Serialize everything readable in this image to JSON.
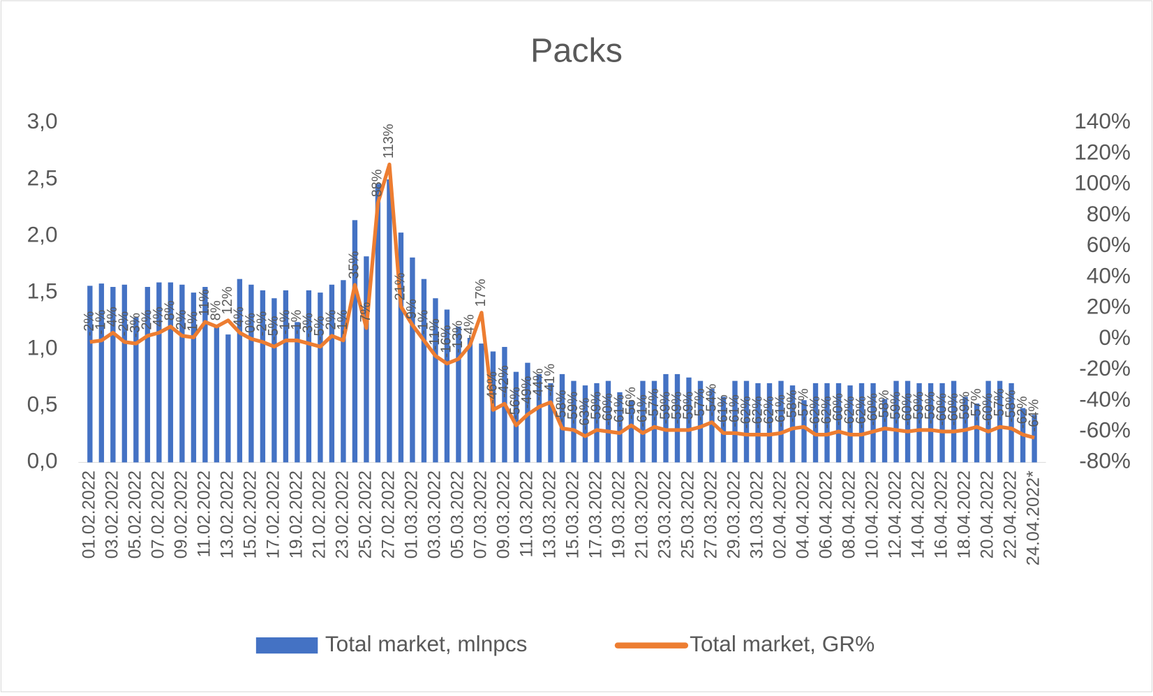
{
  "chart_data": {
    "type": "bar-line",
    "title": "Packs",
    "categories": [
      "01.02.2022",
      null,
      "03.02.2022",
      null,
      "05.02.2022",
      null,
      "07.02.2022",
      null,
      "09.02.2022",
      null,
      "11.02.2022",
      null,
      "13.02.2022",
      null,
      "15.02.2022",
      null,
      "17.02.2022",
      null,
      "19.02.2022",
      null,
      "21.02.2022",
      null,
      "23.02.2022",
      null,
      "25.02.2022",
      null,
      "27.02.2022",
      null,
      "01.03.2022",
      null,
      "03.03.2022",
      null,
      "05.03.2022",
      null,
      "07.03.2022",
      null,
      "09.03.2022",
      null,
      "11.03.2022",
      null,
      "13.03.2022",
      null,
      "15.03.2022",
      null,
      "17.03.2022",
      null,
      "19.03.2022",
      null,
      "21.03.2022",
      null,
      "23.03.2022",
      null,
      "25.03.2022",
      null,
      "27.03.2022",
      null,
      "29.03.2022",
      null,
      "31.03.2022",
      null,
      "02.04.2022",
      null,
      "04.04.2022",
      null,
      "06.04.2022",
      null,
      "08.04.2022",
      null,
      "10.04.2022",
      null,
      "12.04.2022",
      null,
      "14.04.2022",
      null,
      "16.04.2022",
      null,
      "18.04.2022",
      null,
      "20.04.2022",
      null,
      "22.04.2022",
      null,
      "24.04.2022*"
    ],
    "series": [
      {
        "name": "Total market, mlnpcs",
        "color": "#4472c4",
        "kind": "bar",
        "values": [
          1.56,
          1.58,
          1.55,
          1.57,
          1.28,
          1.55,
          1.59,
          1.59,
          1.57,
          1.5,
          1.55,
          1.2,
          1.13,
          1.62,
          1.57,
          1.52,
          1.45,
          1.52,
          1.24,
          1.52,
          1.5,
          1.57,
          1.61,
          2.14,
          1.82,
          2.46,
          2.5,
          2.03,
          1.81,
          1.62,
          1.45,
          1.35,
          1.2,
          1.1,
          1.05,
          0.98,
          1.02,
          0.8,
          0.88,
          0.78,
          0.7,
          0.78,
          0.72,
          0.68,
          0.7,
          0.72,
          0.62,
          0.55,
          0.72,
          0.72,
          0.78,
          0.78,
          0.75,
          0.72,
          0.65,
          0.58,
          0.72,
          0.72,
          0.7,
          0.7,
          0.72,
          0.68,
          0.55,
          0.7,
          0.7,
          0.7,
          0.68,
          0.7,
          0.7,
          0.56,
          0.72,
          0.72,
          0.7,
          0.7,
          0.7,
          0.72,
          0.58,
          0.52,
          0.72,
          0.72,
          0.7,
          0.48,
          0.42
        ]
      },
      {
        "name": "Total market, GR%",
        "color": "#ed7d31",
        "kind": "line",
        "axis": "y2",
        "values": [
          -2,
          -1,
          4,
          -2,
          -3,
          2,
          4,
          8,
          2,
          1,
          11,
          8,
          12,
          4,
          0,
          -2,
          -5,
          -1,
          -1,
          -3,
          -5,
          2,
          -1,
          35,
          7,
          88,
          113,
          21,
          9,
          -1,
          -11,
          -16,
          -13,
          -4,
          17,
          -46,
          -42,
          -56,
          -49,
          -44,
          -41,
          -58,
          -59,
          -63,
          -59,
          -60,
          -61,
          -56,
          -61,
          -57,
          -59,
          -59,
          -59,
          -57,
          -54,
          -61,
          -61,
          -62,
          -62,
          -62,
          -61,
          -58,
          -57,
          -62,
          -62,
          -60,
          -62,
          -62,
          -60,
          -58,
          -59,
          -60,
          -59,
          -59,
          -60,
          -60,
          -59,
          -57,
          -60,
          -57,
          -58,
          -62,
          -64
        ],
        "value_labels": [
          "-2%",
          "-1%",
          "4%",
          "-2%",
          "-3%",
          "2%",
          "4%",
          "8%",
          "2%",
          "1%",
          "11%",
          "8%",
          "12%",
          "4%",
          "0%",
          "-2%",
          "-5%",
          "-1%",
          "-1%",
          "-3%",
          "-5%",
          "2%",
          "-1%",
          "35%",
          "7%",
          "88%",
          "113%",
          "21%",
          "9%",
          "-1%",
          "-11%",
          "-16%",
          "-13%",
          "-4%",
          "17%",
          "-46%",
          "-42%",
          "-56%",
          "-49%",
          "-44%",
          "-41%",
          "-58%",
          "-59%",
          "-63%",
          "-59%",
          "-60%",
          "-61%",
          "-56%",
          "-61%",
          "-57%",
          "-59%",
          "-59%",
          "-59%",
          "-57%",
          "-54%",
          "-61%",
          "-61%",
          "-62%",
          "-62%",
          "-62%",
          "-61%",
          "-58%",
          "-57%",
          "-62%",
          "-62%",
          "-60%",
          "-62%",
          "-62%",
          "-60%",
          "-58%",
          "-59%",
          "-60%",
          "-59%",
          "-59%",
          "-60%",
          "-60%",
          "-59%",
          "-57%",
          "-60%",
          "-57%",
          "-58%",
          "-62%",
          "-64%"
        ]
      }
    ],
    "ylim": [
      0,
      3
    ],
    "yticks": [
      {
        "value": 0,
        "label": "0,0"
      },
      {
        "value": 0.5,
        "label": "0,5"
      },
      {
        "value": 1,
        "label": "1,0"
      },
      {
        "value": 1.5,
        "label": "1,5"
      },
      {
        "value": 2,
        "label": "2,0"
      },
      {
        "value": 2.5,
        "label": "2,5"
      },
      {
        "value": 3,
        "label": "3,0"
      }
    ],
    "y2lim": [
      -80,
      140
    ],
    "y2ticks": [
      {
        "value": -80,
        "label": "-80%"
      },
      {
        "value": -60,
        "label": "-60%"
      },
      {
        "value": -40,
        "label": "-40%"
      },
      {
        "value": -20,
        "label": "-20%"
      },
      {
        "value": 0,
        "label": "0%"
      },
      {
        "value": 20,
        "label": "20%"
      },
      {
        "value": 40,
        "label": "40%"
      },
      {
        "value": 60,
        "label": "60%"
      },
      {
        "value": 80,
        "label": "80%"
      },
      {
        "value": 100,
        "label": "100%"
      },
      {
        "value": 120,
        "label": "120%"
      },
      {
        "value": 140,
        "label": "140%"
      }
    ],
    "legend": "bottom"
  }
}
